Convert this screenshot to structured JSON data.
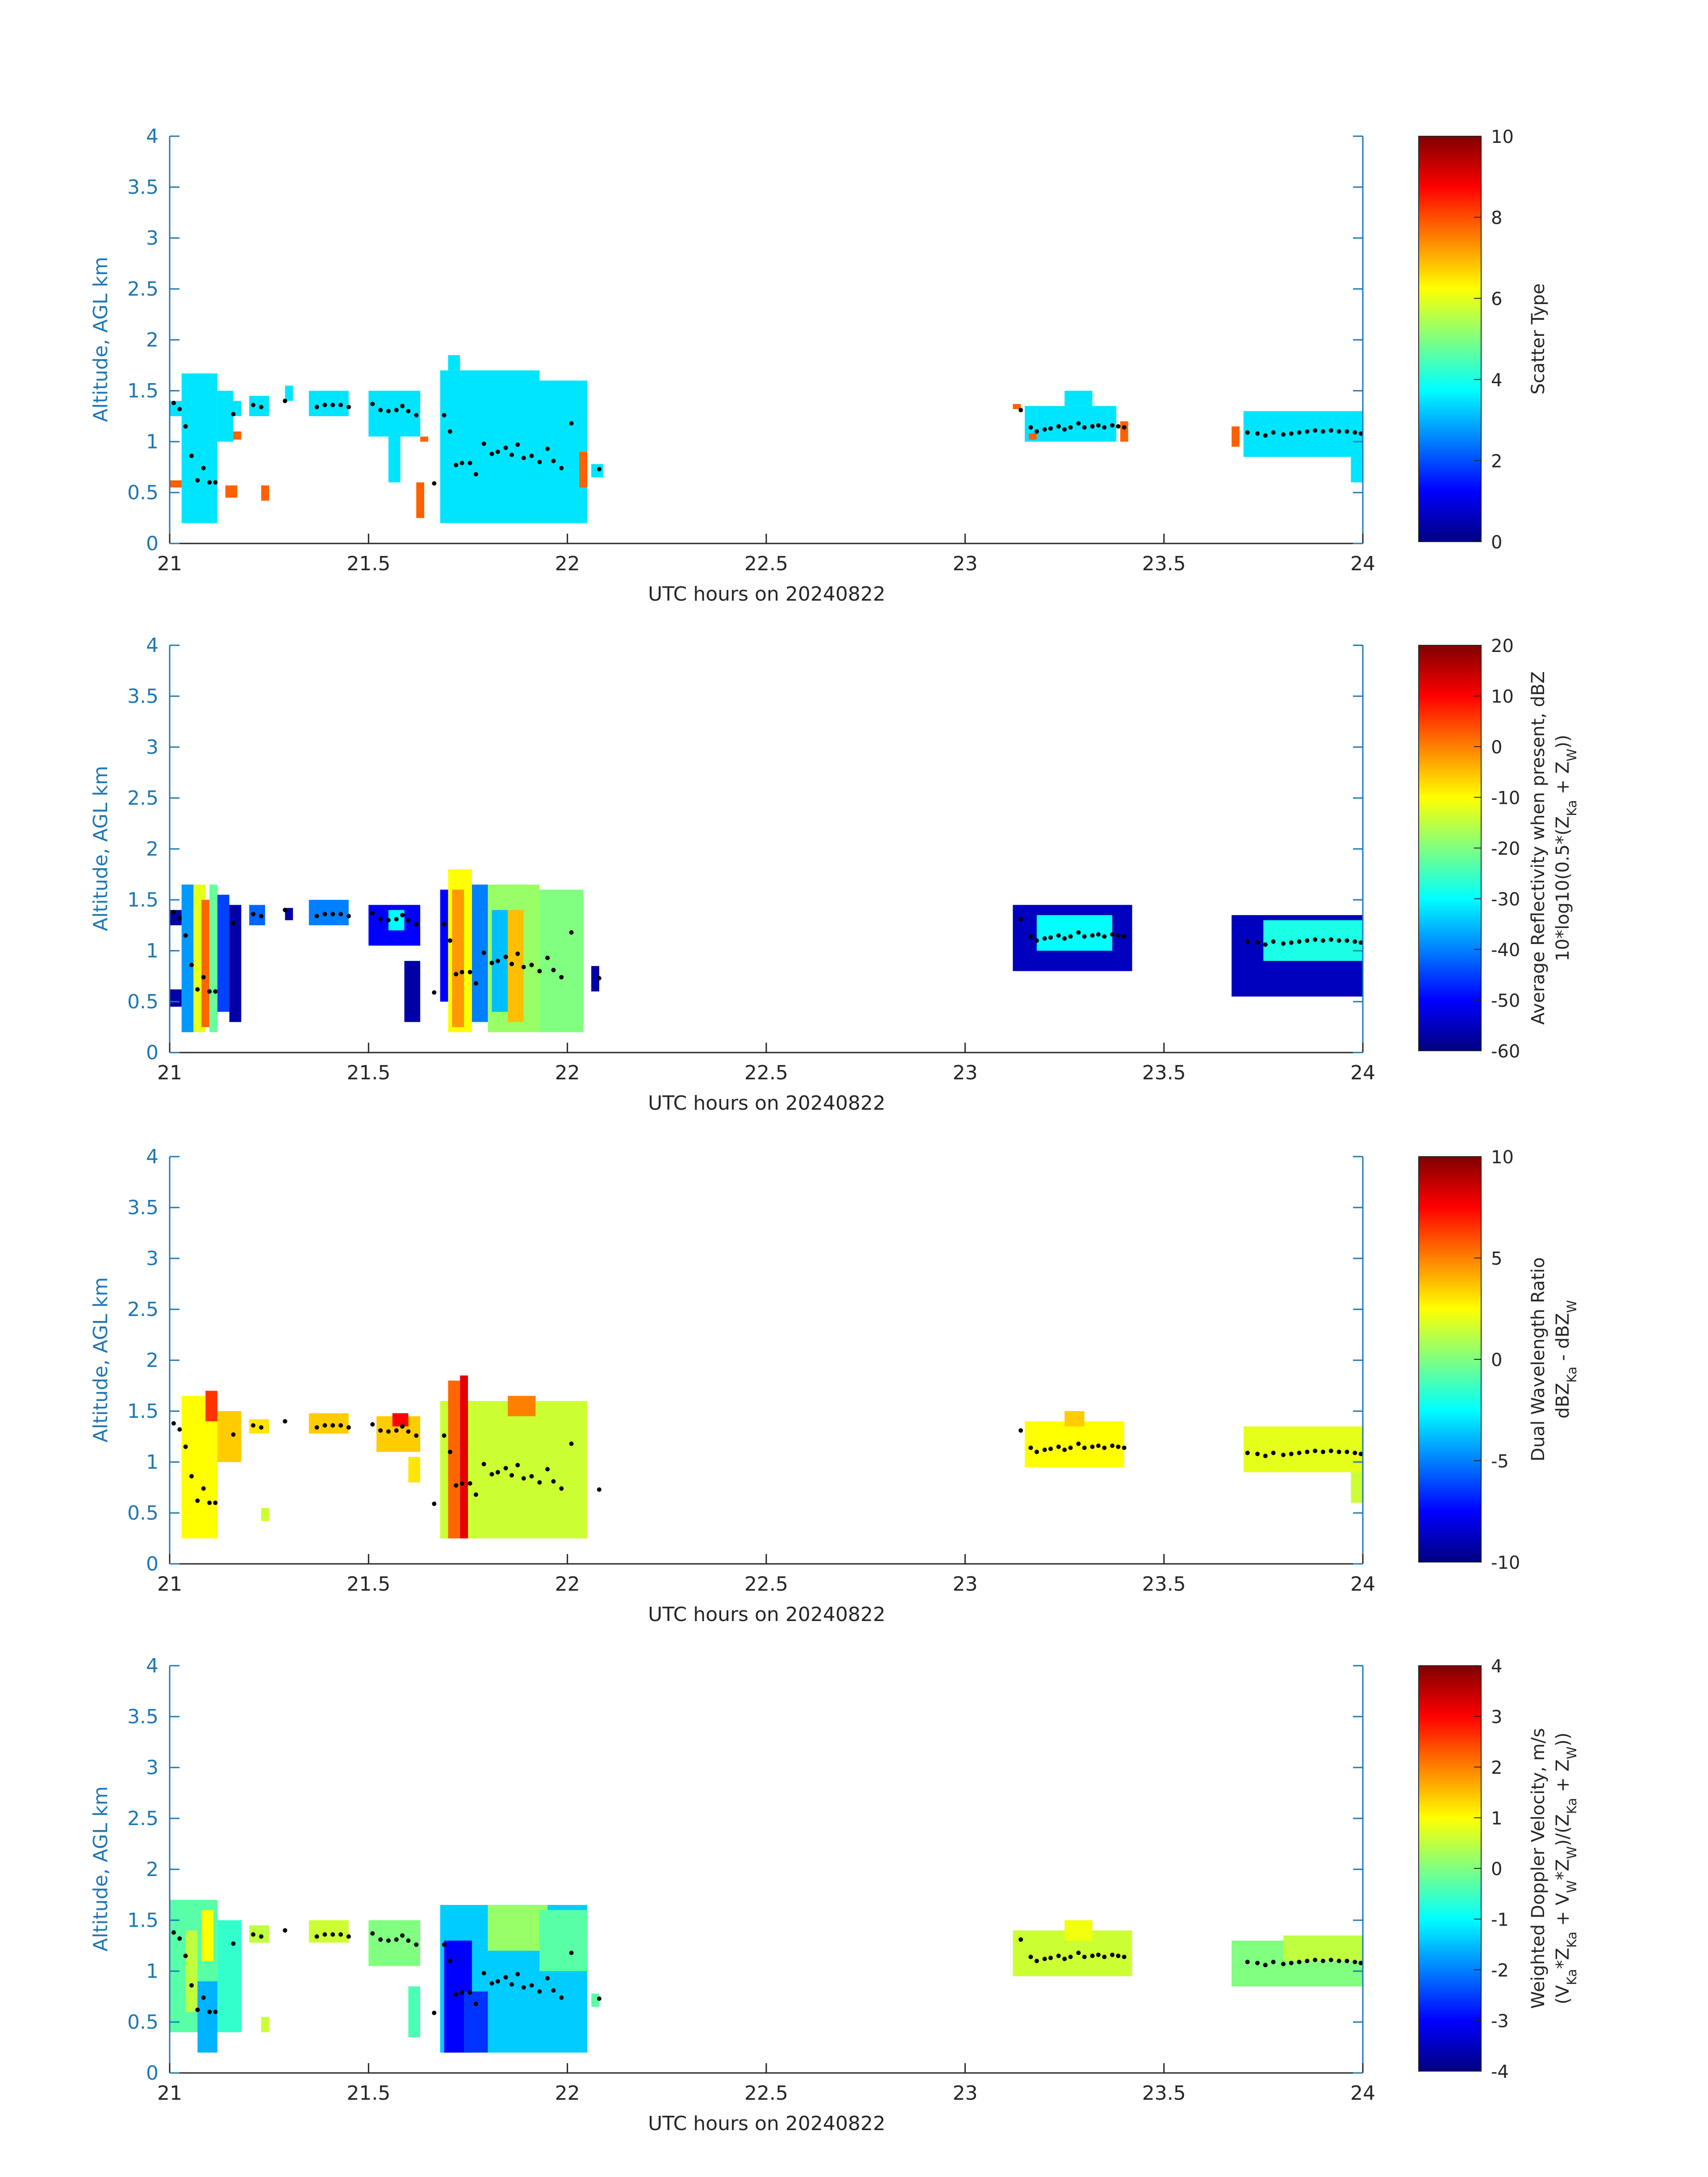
{
  "figure": {
    "xlabel": "UTC hours on 20240822",
    "ylabel": "Altitude, AGL km",
    "xlim": [
      21,
      24
    ],
    "ylim": [
      0,
      4
    ],
    "x_ticks": [
      "21",
      "21.5",
      "22",
      "22.5",
      "23",
      "23.5",
      "24"
    ],
    "y_ticks": [
      "0",
      "0.5",
      "1",
      "1.5",
      "2",
      "2.5",
      "3",
      "3.5",
      "4"
    ],
    "axis_color": "#1f77b4",
    "colormap": "jet"
  },
  "chart_data": [
    {
      "type": "heatmap",
      "panel": "scatter-type",
      "colorbar_label_lines": [
        "Scatter Type"
      ],
      "clim": [
        0,
        10
      ],
      "colorbar_ticks": [
        "0",
        "2",
        "4",
        "6",
        "8",
        "10"
      ],
      "x_range": [
        21,
        24
      ],
      "y_range": [
        0,
        4
      ],
      "series": [
        {
          "x_start": 21.0,
          "x_end": 21.03,
          "y_start": 1.25,
          "y_end": 1.4,
          "value": 3.5
        },
        {
          "x_start": 21.03,
          "x_end": 21.12,
          "y_start": 0.2,
          "y_end": 1.67,
          "value": 3.5
        },
        {
          "x_start": 21.12,
          "x_end": 21.16,
          "y_start": 1.0,
          "y_end": 1.5,
          "value": 3.5
        },
        {
          "x_start": 21.16,
          "x_end": 21.18,
          "y_start": 1.25,
          "y_end": 1.4,
          "value": 3.5
        },
        {
          "x_start": 21.2,
          "x_end": 21.25,
          "y_start": 1.25,
          "y_end": 1.45,
          "value": 3.5
        },
        {
          "x_start": 21.29,
          "x_end": 21.31,
          "y_start": 1.4,
          "y_end": 1.55,
          "value": 3.5
        },
        {
          "x_start": 21.35,
          "x_end": 21.45,
          "y_start": 1.25,
          "y_end": 1.5,
          "value": 3.5
        },
        {
          "x_start": 21.5,
          "x_end": 21.63,
          "y_start": 1.05,
          "y_end": 1.5,
          "value": 3.5
        },
        {
          "x_start": 21.55,
          "x_end": 21.58,
          "y_start": 0.6,
          "y_end": 1.05,
          "value": 3.5
        },
        {
          "x_start": 21.68,
          "x_end": 21.93,
          "y_start": 0.2,
          "y_end": 1.7,
          "value": 3.5
        },
        {
          "x_start": 21.7,
          "x_end": 21.73,
          "y_start": 1.7,
          "y_end": 1.85,
          "value": 3.5
        },
        {
          "x_start": 21.93,
          "x_end": 22.05,
          "y_start": 0.2,
          "y_end": 1.6,
          "value": 3.5
        },
        {
          "x_start": 22.06,
          "x_end": 22.09,
          "y_start": 0.65,
          "y_end": 0.78,
          "value": 3.5
        },
        {
          "x_start": 23.15,
          "x_end": 23.38,
          "y_start": 1.0,
          "y_end": 1.35,
          "value": 3.5
        },
        {
          "x_start": 23.25,
          "x_end": 23.32,
          "y_start": 1.35,
          "y_end": 1.5,
          "value": 3.5
        },
        {
          "x_start": 23.7,
          "x_end": 24.0,
          "y_start": 0.85,
          "y_end": 1.3,
          "value": 3.5
        },
        {
          "x_start": 23.97,
          "x_end": 24.0,
          "y_start": 0.6,
          "y_end": 0.85,
          "value": 3.5
        },
        {
          "x_start": 21.0,
          "x_end": 21.03,
          "y_start": 0.55,
          "y_end": 0.62,
          "value": 7.8
        },
        {
          "x_start": 21.14,
          "x_end": 21.17,
          "y_start": 0.45,
          "y_end": 0.57,
          "value": 7.8
        },
        {
          "x_start": 21.16,
          "x_end": 21.18,
          "y_start": 1.02,
          "y_end": 1.1,
          "value": 7.8
        },
        {
          "x_start": 21.23,
          "x_end": 21.25,
          "y_start": 0.42,
          "y_end": 0.57,
          "value": 7.8
        },
        {
          "x_start": 21.62,
          "x_end": 21.64,
          "y_start": 0.25,
          "y_end": 0.6,
          "value": 7.8
        },
        {
          "x_start": 21.63,
          "x_end": 21.65,
          "y_start": 1.0,
          "y_end": 1.05,
          "value": 7.8
        },
        {
          "x_start": 22.03,
          "x_end": 22.05,
          "y_start": 0.55,
          "y_end": 0.9,
          "value": 7.8
        },
        {
          "x_start": 23.12,
          "x_end": 23.14,
          "y_start": 1.32,
          "y_end": 1.37,
          "value": 7.8
        },
        {
          "x_start": 23.16,
          "x_end": 23.18,
          "y_start": 1.02,
          "y_end": 1.08,
          "value": 7.8
        },
        {
          "x_start": 23.39,
          "x_end": 23.41,
          "y_start": 1.0,
          "y_end": 1.2,
          "value": 7.8
        },
        {
          "x_start": 23.67,
          "x_end": 23.69,
          "y_start": 0.95,
          "y_end": 1.15,
          "value": 7.8
        }
      ]
    },
    {
      "type": "heatmap",
      "panel": "reflectivity",
      "colorbar_label_lines": [
        "Average Reflectivity when present, dBZ",
        "10*log10(0.5*(Z_Ka + Z_W))"
      ],
      "clim": [
        -60,
        20
      ],
      "colorbar_ticks": [
        "-60",
        "-50",
        "-40",
        "-30",
        "-20",
        "-10",
        "0",
        "10",
        "20"
      ],
      "x_range": [
        21,
        24
      ],
      "y_range": [
        0,
        4
      ],
      "series": [
        {
          "x_start": 21.0,
          "x_end": 21.03,
          "y_start": 1.25,
          "y_end": 1.4,
          "value": -57
        },
        {
          "x_start": 21.0,
          "x_end": 21.03,
          "y_start": 0.45,
          "y_end": 0.62,
          "value": -57
        },
        {
          "x_start": 21.03,
          "x_end": 21.06,
          "y_start": 0.2,
          "y_end": 1.65,
          "value": -38
        },
        {
          "x_start": 21.06,
          "x_end": 21.09,
          "y_start": 0.2,
          "y_end": 1.65,
          "value": -12
        },
        {
          "x_start": 21.08,
          "x_end": 21.1,
          "y_start": 0.25,
          "y_end": 1.5,
          "value": 2
        },
        {
          "x_start": 21.1,
          "x_end": 21.12,
          "y_start": 0.2,
          "y_end": 1.65,
          "value": -22
        },
        {
          "x_start": 21.12,
          "x_end": 21.15,
          "y_start": 0.4,
          "y_end": 1.55,
          "value": -45
        },
        {
          "x_start": 21.15,
          "x_end": 21.18,
          "y_start": 0.3,
          "y_end": 1.45,
          "value": -57
        },
        {
          "x_start": 21.2,
          "x_end": 21.24,
          "y_start": 1.25,
          "y_end": 1.45,
          "value": -42
        },
        {
          "x_start": 21.29,
          "x_end": 21.31,
          "y_start": 1.3,
          "y_end": 1.42,
          "value": -57
        },
        {
          "x_start": 21.35,
          "x_end": 21.45,
          "y_start": 1.25,
          "y_end": 1.5,
          "value": -40
        },
        {
          "x_start": 21.5,
          "x_end": 21.63,
          "y_start": 1.05,
          "y_end": 1.45,
          "value": -50
        },
        {
          "x_start": 21.55,
          "x_end": 21.59,
          "y_start": 1.2,
          "y_end": 1.4,
          "value": -30
        },
        {
          "x_start": 21.59,
          "x_end": 21.63,
          "y_start": 0.3,
          "y_end": 0.9,
          "value": -57
        },
        {
          "x_start": 21.68,
          "x_end": 21.7,
          "y_start": 0.5,
          "y_end": 1.6,
          "value": -50
        },
        {
          "x_start": 21.7,
          "x_end": 21.76,
          "y_start": 0.2,
          "y_end": 1.8,
          "value": -10
        },
        {
          "x_start": 21.71,
          "x_end": 21.74,
          "y_start": 0.25,
          "y_end": 1.6,
          "value": -2
        },
        {
          "x_start": 21.76,
          "x_end": 21.8,
          "y_start": 0.3,
          "y_end": 1.65,
          "value": -40
        },
        {
          "x_start": 21.8,
          "x_end": 21.93,
          "y_start": 0.2,
          "y_end": 1.65,
          "value": -18
        },
        {
          "x_start": 21.81,
          "x_end": 21.85,
          "y_start": 0.4,
          "y_end": 1.4,
          "value": -35
        },
        {
          "x_start": 21.85,
          "x_end": 21.89,
          "y_start": 0.3,
          "y_end": 1.4,
          "value": -5
        },
        {
          "x_start": 21.93,
          "x_end": 22.04,
          "y_start": 0.2,
          "y_end": 1.6,
          "value": -20
        },
        {
          "x_start": 22.06,
          "x_end": 22.08,
          "y_start": 0.6,
          "y_end": 0.85,
          "value": -57
        },
        {
          "x_start": 23.12,
          "x_end": 23.42,
          "y_start": 0.8,
          "y_end": 1.45,
          "value": -55
        },
        {
          "x_start": 23.18,
          "x_end": 23.37,
          "y_start": 1.0,
          "y_end": 1.35,
          "value": -30
        },
        {
          "x_start": 23.67,
          "x_end": 24.0,
          "y_start": 0.55,
          "y_end": 1.35,
          "value": -55
        },
        {
          "x_start": 23.75,
          "x_end": 24.0,
          "y_start": 0.9,
          "y_end": 1.3,
          "value": -28
        }
      ]
    },
    {
      "type": "heatmap",
      "panel": "dual-wavelength-ratio",
      "colorbar_label_lines": [
        "Dual Wavelength Ratio",
        "dBZ_Ka - dBZ_W"
      ],
      "clim": [
        -10,
        10
      ],
      "colorbar_ticks": [
        "-10",
        "-5",
        "0",
        "5",
        "10"
      ],
      "x_range": [
        21,
        24
      ],
      "y_range": [
        0,
        4
      ],
      "series": [
        {
          "x_start": 21.03,
          "x_end": 21.12,
          "y_start": 0.25,
          "y_end": 1.65,
          "value": 2.5
        },
        {
          "x_start": 21.09,
          "x_end": 21.12,
          "y_start": 1.4,
          "y_end": 1.7,
          "value": 6.5
        },
        {
          "x_start": 21.12,
          "x_end": 21.18,
          "y_start": 1.0,
          "y_end": 1.5,
          "value": 3.5
        },
        {
          "x_start": 21.23,
          "x_end": 21.25,
          "y_start": 0.42,
          "y_end": 0.55,
          "value": 1.5
        },
        {
          "x_start": 21.2,
          "x_end": 21.25,
          "y_start": 1.28,
          "y_end": 1.42,
          "value": 3.0
        },
        {
          "x_start": 21.35,
          "x_end": 21.45,
          "y_start": 1.28,
          "y_end": 1.48,
          "value": 3.5
        },
        {
          "x_start": 21.52,
          "x_end": 21.63,
          "y_start": 1.1,
          "y_end": 1.45,
          "value": 3.5
        },
        {
          "x_start": 21.56,
          "x_end": 21.6,
          "y_start": 1.35,
          "y_end": 1.48,
          "value": 7.5
        },
        {
          "x_start": 21.6,
          "x_end": 21.63,
          "y_start": 0.8,
          "y_end": 1.05,
          "value": 3.0
        },
        {
          "x_start": 21.68,
          "x_end": 22.05,
          "y_start": 0.25,
          "y_end": 1.6,
          "value": 1.5
        },
        {
          "x_start": 21.7,
          "x_end": 21.73,
          "y_start": 0.25,
          "y_end": 1.8,
          "value": 5.5
        },
        {
          "x_start": 21.73,
          "x_end": 21.75,
          "y_start": 0.25,
          "y_end": 1.85,
          "value": 8.0
        },
        {
          "x_start": 21.85,
          "x_end": 21.92,
          "y_start": 1.45,
          "y_end": 1.65,
          "value": 5.0
        },
        {
          "x_start": 23.15,
          "x_end": 23.4,
          "y_start": 0.95,
          "y_end": 1.4,
          "value": 2.5
        },
        {
          "x_start": 23.25,
          "x_end": 23.3,
          "y_start": 1.35,
          "y_end": 1.5,
          "value": 3.5
        },
        {
          "x_start": 23.7,
          "x_end": 24.0,
          "y_start": 0.9,
          "y_end": 1.35,
          "value": 2.0
        },
        {
          "x_start": 23.97,
          "x_end": 24.0,
          "y_start": 0.6,
          "y_end": 0.9,
          "value": 1.5
        }
      ]
    },
    {
      "type": "heatmap",
      "panel": "doppler-velocity",
      "colorbar_label_lines": [
        "Weighted Doppler Velocity, m/s",
        "(V_Ka*Z_Ka + V_W*Z_W)/(Z_Ka + Z_W))"
      ],
      "clim": [
        -4,
        4
      ],
      "colorbar_ticks": [
        "-4",
        "-3",
        "-2",
        "-1",
        "0",
        "1",
        "2",
        "3",
        "4"
      ],
      "x_range": [
        21,
        24
      ],
      "y_range": [
        0,
        4
      ],
      "series": [
        {
          "x_start": 21.0,
          "x_end": 21.12,
          "y_start": 0.4,
          "y_end": 1.7,
          "value": -0.3
        },
        {
          "x_start": 21.04,
          "x_end": 21.07,
          "y_start": 0.6,
          "y_end": 1.4,
          "value": 0.5
        },
        {
          "x_start": 21.07,
          "x_end": 21.12,
          "y_start": 0.2,
          "y_end": 0.9,
          "value": -1.6
        },
        {
          "x_start": 21.08,
          "x_end": 21.11,
          "y_start": 1.1,
          "y_end": 1.6,
          "value": 1.0
        },
        {
          "x_start": 21.12,
          "x_end": 21.18,
          "y_start": 0.4,
          "y_end": 1.5,
          "value": -0.6
        },
        {
          "x_start": 21.2,
          "x_end": 21.25,
          "y_start": 1.28,
          "y_end": 1.45,
          "value": 0.5
        },
        {
          "x_start": 21.23,
          "x_end": 21.25,
          "y_start": 0.4,
          "y_end": 0.55,
          "value": 0.6
        },
        {
          "x_start": 21.35,
          "x_end": 21.45,
          "y_start": 1.28,
          "y_end": 1.5,
          "value": 0.6
        },
        {
          "x_start": 21.5,
          "x_end": 21.63,
          "y_start": 1.05,
          "y_end": 1.5,
          "value": 0.0
        },
        {
          "x_start": 21.6,
          "x_end": 21.63,
          "y_start": 0.35,
          "y_end": 0.85,
          "value": -0.4
        },
        {
          "x_start": 21.68,
          "x_end": 22.05,
          "y_start": 0.2,
          "y_end": 1.65,
          "value": -1.4
        },
        {
          "x_start": 21.69,
          "x_end": 21.76,
          "y_start": 0.2,
          "y_end": 1.3,
          "value": -3.0
        },
        {
          "x_start": 21.74,
          "x_end": 21.8,
          "y_start": 0.2,
          "y_end": 0.8,
          "value": -2.6
        },
        {
          "x_start": 21.8,
          "x_end": 21.95,
          "y_start": 1.2,
          "y_end": 1.65,
          "value": 0.2
        },
        {
          "x_start": 21.93,
          "x_end": 22.05,
          "y_start": 1.0,
          "y_end": 1.6,
          "value": -0.3
        },
        {
          "x_start": 22.06,
          "x_end": 22.08,
          "y_start": 0.65,
          "y_end": 0.78,
          "value": -0.3
        },
        {
          "x_start": 23.12,
          "x_end": 23.42,
          "y_start": 0.95,
          "y_end": 1.4,
          "value": 0.6
        },
        {
          "x_start": 23.25,
          "x_end": 23.32,
          "y_start": 1.3,
          "y_end": 1.5,
          "value": 0.9
        },
        {
          "x_start": 23.67,
          "x_end": 24.0,
          "y_start": 0.85,
          "y_end": 1.3,
          "value": 0.0
        },
        {
          "x_start": 23.8,
          "x_end": 24.0,
          "y_start": 1.1,
          "y_end": 1.35,
          "value": 0.5
        }
      ]
    }
  ],
  "cloud_base_points": [
    [
      21.01,
      1.38
    ],
    [
      21.025,
      1.32
    ],
    [
      21.04,
      1.15
    ],
    [
      21.055,
      0.86
    ],
    [
      21.07,
      0.62
    ],
    [
      21.085,
      0.74
    ],
    [
      21.1,
      0.6
    ],
    [
      21.115,
      0.6
    ],
    [
      21.16,
      1.27
    ],
    [
      21.21,
      1.36
    ],
    [
      21.23,
      1.34
    ],
    [
      21.29,
      1.4
    ],
    [
      21.37,
      1.34
    ],
    [
      21.39,
      1.36
    ],
    [
      21.41,
      1.36
    ],
    [
      21.43,
      1.36
    ],
    [
      21.45,
      1.34
    ],
    [
      21.51,
      1.37
    ],
    [
      21.53,
      1.31
    ],
    [
      21.55,
      1.3
    ],
    [
      21.57,
      1.31
    ],
    [
      21.585,
      1.35
    ],
    [
      21.6,
      1.3
    ],
    [
      21.62,
      1.26
    ],
    [
      21.665,
      0.59
    ],
    [
      21.69,
      1.26
    ],
    [
      21.705,
      1.1
    ],
    [
      21.72,
      0.77
    ],
    [
      21.735,
      0.79
    ],
    [
      21.755,
      0.79
    ],
    [
      21.77,
      0.68
    ],
    [
      21.79,
      0.98
    ],
    [
      21.81,
      0.88
    ],
    [
      21.825,
      0.9
    ],
    [
      21.845,
      0.94
    ],
    [
      21.86,
      0.87
    ],
    [
      21.875,
      0.97
    ],
    [
      21.89,
      0.84
    ],
    [
      21.91,
      0.86
    ],
    [
      21.93,
      0.8
    ],
    [
      21.95,
      0.93
    ],
    [
      21.965,
      0.81
    ],
    [
      21.985,
      0.74
    ],
    [
      22.01,
      1.18
    ],
    [
      22.08,
      0.73
    ],
    [
      23.14,
      1.31
    ],
    [
      23.165,
      1.14
    ],
    [
      23.18,
      1.1
    ],
    [
      23.2,
      1.12
    ],
    [
      23.215,
      1.13
    ],
    [
      23.235,
      1.15
    ],
    [
      23.25,
      1.12
    ],
    [
      23.265,
      1.14
    ],
    [
      23.285,
      1.18
    ],
    [
      23.3,
      1.14
    ],
    [
      23.32,
      1.15
    ],
    [
      23.335,
      1.16
    ],
    [
      23.35,
      1.14
    ],
    [
      23.37,
      1.16
    ],
    [
      23.385,
      1.15
    ],
    [
      23.4,
      1.14
    ],
    [
      23.71,
      1.09
    ],
    [
      23.735,
      1.08
    ],
    [
      23.755,
      1.06
    ],
    [
      23.775,
      1.09
    ],
    [
      23.8,
      1.07
    ],
    [
      23.82,
      1.08
    ],
    [
      23.84,
      1.09
    ],
    [
      23.86,
      1.1
    ],
    [
      23.88,
      1.11
    ],
    [
      23.9,
      1.1
    ],
    [
      23.92,
      1.11
    ],
    [
      23.94,
      1.1
    ],
    [
      23.96,
      1.1
    ],
    [
      23.98,
      1.09
    ],
    [
      23.995,
      1.08
    ]
  ]
}
